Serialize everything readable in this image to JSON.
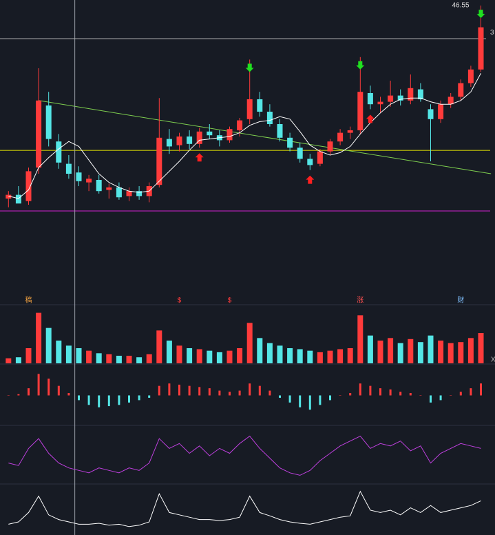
{
  "chart_data": {
    "type": "candlestick",
    "open": [
      31.0,
      31.3,
      30.8,
      33.5,
      38.5,
      35.6,
      33.8,
      33.1,
      32.3,
      32.5,
      31.7,
      31.9,
      31.2,
      31.6,
      31.2,
      32.1,
      35.8,
      35.3,
      36.0,
      35.4,
      36.4,
      36.1,
      35.7,
      36.5,
      37.4,
      39.0,
      38.0,
      37.0,
      35.9,
      35.1,
      34.2,
      33.8,
      34.8,
      35.6,
      36.3,
      36.5,
      39.5,
      38.6,
      38.8,
      39.3,
      38.9,
      39.8,
      38.2,
      37.4,
      38.6,
      39.2,
      40.3,
      41.4
    ],
    "high": [
      31.6,
      32.0,
      33.5,
      41.5,
      39.6,
      36.2,
      34.5,
      33.6,
      32.9,
      32.9,
      32.2,
      32.3,
      31.9,
      32.0,
      32.3,
      39.1,
      36.6,
      36.3,
      36.5,
      36.7,
      37.0,
      36.5,
      36.8,
      37.5,
      42.2,
      39.6,
      38.6,
      37.4,
      36.3,
      35.5,
      34.6,
      35.0,
      35.8,
      36.6,
      36.8,
      42.4,
      40.1,
      39.2,
      40.5,
      39.8,
      41.0,
      40.3,
      38.6,
      38.9,
      39.5,
      40.6,
      41.7,
      46.55
    ],
    "low": [
      30.3,
      30.8,
      30.5,
      33.0,
      35.2,
      33.4,
      32.6,
      32.0,
      31.6,
      31.4,
      31.0,
      30.9,
      30.8,
      30.9,
      30.7,
      31.9,
      34.6,
      34.8,
      35.0,
      35.1,
      35.8,
      35.2,
      35.5,
      36.0,
      37.0,
      37.6,
      36.8,
      35.6,
      34.8,
      33.9,
      33.3,
      33.6,
      34.5,
      35.3,
      35.8,
      36.2,
      38.2,
      37.9,
      38.4,
      38.5,
      38.6,
      38.8,
      34.0,
      37.1,
      38.3,
      38.9,
      40.0,
      41.2
    ],
    "close": [
      31.3,
      30.6,
      33.2,
      38.9,
      35.8,
      33.9,
      33.0,
      32.4,
      32.6,
      31.6,
      31.9,
      31.1,
      31.6,
      31.2,
      32.0,
      35.9,
      35.2,
      36.0,
      35.4,
      36.4,
      36.1,
      35.7,
      36.6,
      37.3,
      39.0,
      38.0,
      37.0,
      35.9,
      35.1,
      34.2,
      33.7,
      34.8,
      35.6,
      36.3,
      36.5,
      39.6,
      38.6,
      38.8,
      39.3,
      38.9,
      39.9,
      39.0,
      37.4,
      38.6,
      39.2,
      40.3,
      41.4,
      44.8
    ],
    "ma": [
      31.2,
      31.0,
      31.7,
      33.5,
      34.3,
      35.0,
      35.6,
      35.2,
      34.1,
      33.0,
      32.3,
      31.9,
      31.6,
      31.5,
      31.6,
      32.4,
      33.2,
      34.0,
      34.9,
      35.7,
      35.8,
      35.9,
      36.0,
      36.3,
      36.9,
      37.2,
      37.3,
      37.6,
      37.4,
      36.4,
      35.3,
      34.8,
      34.5,
      34.7,
      35.2,
      36.2,
      37.1,
      37.9,
      38.6,
      39.0,
      39.1,
      39.1,
      38.8,
      38.6,
      38.6,
      38.9,
      39.6,
      41.1
    ],
    "up_color": "#ff3b3b",
    "down_color": "#54e6e6",
    "ma_color": "#ffffff",
    "ylim": [
      24,
      47
    ],
    "levels": [
      {
        "value": 34.88,
        "color": "#e6e600"
      },
      {
        "value": 30.0,
        "color": "#d020d0"
      }
    ],
    "trendline": {
      "from": [
        3,
        38.9
      ],
      "to": [
        48,
        33.0
      ],
      "color": "#7fd04f"
    },
    "crosshair": {
      "index": 6.6,
      "value": 43.88,
      "label": "3"
    },
    "buy_signals": [
      19,
      30,
      36
    ],
    "sell_signals": [
      24,
      35,
      47
    ],
    "events": [
      {
        "index": 2,
        "label": "稿",
        "color": "#f0a040"
      },
      {
        "index": 17,
        "label": "$",
        "color": "#ff3b3b"
      },
      {
        "index": 22,
        "label": "$",
        "color": "#ff3b3b"
      },
      {
        "index": 35,
        "label": "涨",
        "color": "#ff5050"
      },
      {
        "index": 45,
        "label": "财",
        "color": "#80c0ff"
      }
    ],
    "volume": {
      "values": [
        10,
        12,
        30,
        100,
        70,
        45,
        35,
        30,
        25,
        20,
        18,
        15,
        15,
        12,
        18,
        65,
        45,
        35,
        30,
        28,
        25,
        22,
        25,
        30,
        80,
        50,
        40,
        35,
        30,
        28,
        25,
        22,
        25,
        28,
        30,
        95,
        55,
        45,
        50,
        40,
        48,
        42,
        55,
        45,
        40,
        42,
        50,
        60
      ],
      "ylim": [
        0,
        105
      ],
      "label": "X"
    },
    "macd": {
      "values": [
        0,
        0.05,
        0.3,
        0.9,
        0.7,
        0.4,
        0.1,
        -0.2,
        -0.4,
        -0.5,
        -0.45,
        -0.4,
        -0.3,
        -0.2,
        -0.1,
        0.4,
        0.5,
        0.45,
        0.4,
        0.35,
        0.3,
        0.2,
        0.15,
        0.2,
        0.5,
        0.4,
        0.2,
        -0.1,
        -0.3,
        -0.5,
        -0.6,
        -0.4,
        -0.2,
        0,
        0.1,
        0.5,
        0.4,
        0.3,
        0.25,
        0.15,
        0.1,
        0,
        -0.3,
        -0.2,
        0,
        0.15,
        0.3,
        0.5
      ],
      "ylim": [
        -1.2,
        1.2
      ]
    },
    "kdj": {
      "values": [
        40,
        35,
        70,
        90,
        60,
        40,
        30,
        25,
        20,
        30,
        25,
        20,
        30,
        25,
        40,
        90,
        70,
        80,
        60,
        75,
        55,
        70,
        60,
        80,
        95,
        70,
        50,
        30,
        20,
        15,
        25,
        45,
        60,
        75,
        85,
        95,
        70,
        80,
        75,
        85,
        65,
        75,
        40,
        60,
        70,
        80,
        75,
        70
      ],
      "ylim": [
        0,
        110
      ],
      "color": "#c040e0"
    },
    "osc": {
      "values": [
        20,
        25,
        45,
        80,
        40,
        30,
        25,
        20,
        20,
        22,
        18,
        20,
        15,
        18,
        25,
        85,
        45,
        40,
        35,
        30,
        30,
        28,
        30,
        35,
        80,
        45,
        38,
        30,
        25,
        22,
        20,
        25,
        30,
        35,
        38,
        90,
        50,
        45,
        50,
        40,
        55,
        45,
        60,
        45,
        50,
        55,
        60,
        70
      ],
      "ylim": [
        0,
        100
      ],
      "color": "#ffffff"
    }
  }
}
